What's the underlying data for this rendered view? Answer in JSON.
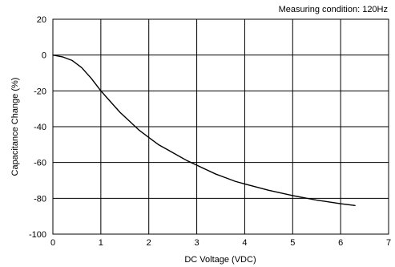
{
  "chart_data": {
    "type": "line",
    "title": "",
    "annotation": "Measuring condition: 120Hz",
    "xlabel": "DC Voltage (VDC)",
    "ylabel": "Capacitance Change (%)",
    "xlim": [
      0,
      7
    ],
    "ylim": [
      -100,
      20
    ],
    "x_ticks": [
      0,
      1,
      2,
      3,
      4,
      5,
      6,
      7
    ],
    "y_ticks": [
      20,
      0,
      -20,
      -40,
      -60,
      -80,
      -100
    ],
    "grid": true,
    "legend": "none",
    "colors": {
      "line": "#000000",
      "grid": "#000000"
    },
    "series": [
      {
        "x": [
          0,
          0.2,
          0.4,
          0.6,
          0.8,
          1.0,
          1.2,
          1.4,
          1.6,
          1.8,
          2.0,
          2.2,
          2.4,
          2.6,
          2.8,
          3.0,
          3.2,
          3.4,
          3.6,
          3.8,
          4.0,
          4.5,
          5.0,
          5.5,
          6.0,
          6.3
        ],
        "y": [
          0,
          -1,
          -3,
          -7,
          -13,
          -20,
          -26,
          -32,
          -37,
          -42,
          -46,
          -50,
          -53,
          -56,
          -59,
          -61.5,
          -64,
          -66.5,
          -68.5,
          -70.5,
          -72,
          -75.5,
          -78.5,
          -81,
          -83,
          -84
        ]
      }
    ]
  }
}
